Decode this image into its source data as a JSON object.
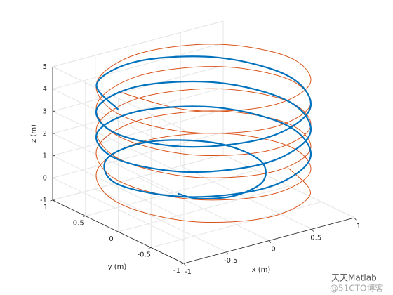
{
  "chart_data": {
    "type": "line3d",
    "xlabel": "x (m)",
    "ylabel": "y (m)",
    "zlabel": "z (m)",
    "xlim": [
      -1,
      1
    ],
    "ylim": [
      -1,
      1
    ],
    "zlim": [
      -1,
      5
    ],
    "xticks": [
      -1,
      -0.5,
      0,
      0.5,
      1
    ],
    "yticks": [
      -1,
      -0.5,
      0,
      0.5,
      1
    ],
    "zticks": [
      -1,
      0,
      1,
      2,
      3,
      4,
      5
    ],
    "grid": true,
    "series": [
      {
        "color": "#d95319",
        "width": 1,
        "x": [
          -1,
          -0.707,
          0,
          0.707,
          1,
          0.707,
          0,
          -0.707,
          -1,
          -0.707,
          0,
          0.707,
          1,
          0.707,
          0,
          -0.707,
          -1,
          -0.707,
          0,
          0.707,
          1,
          0.707,
          0,
          -0.707,
          -1,
          -0.707,
          0,
          0.707,
          1,
          0.707,
          0,
          -0.707,
          -1,
          -0.707,
          0,
          0.707,
          1,
          0.707,
          0,
          -0.707,
          -1,
          -0.707,
          0,
          0.707,
          1
        ],
        "y": [
          0,
          -0.707,
          -1,
          -0.707,
          0,
          0.707,
          1,
          0.707,
          0,
          -0.707,
          -1,
          -0.707,
          0,
          0.707,
          1,
          0.707,
          0,
          -0.707,
          -1,
          -0.707,
          0,
          0.707,
          1,
          0.707,
          0,
          -0.707,
          -1,
          -0.707,
          0,
          0.707,
          1,
          0.707,
          0,
          -0.707,
          -1,
          -0.707,
          0,
          0.707,
          1,
          0.707,
          0,
          -0.707,
          -1,
          -0.707,
          0
        ],
        "z": [
          5.3,
          5.175,
          5.05,
          4.925,
          4.8,
          4.675,
          4.55,
          4.425,
          4.3,
          4.175,
          4.05,
          3.925,
          3.8,
          3.675,
          3.55,
          3.425,
          3.3,
          3.175,
          3.05,
          2.925,
          2.8,
          2.675,
          2.55,
          2.425,
          2.3,
          2.175,
          2.05,
          1.925,
          1.8,
          1.675,
          1.55,
          1.425,
          1.3,
          1.175,
          1.05,
          0.925,
          0.8,
          0.675,
          0.55,
          0.425,
          0.3,
          0.175,
          0.05,
          -0.075,
          -0.2
        ]
      },
      {
        "color": "#0072bd",
        "width": 2.2,
        "x": [
          -0.3,
          -0.276,
          0,
          0.396,
          0.65,
          0.523,
          0,
          -0.643,
          -1,
          -0.707,
          0,
          0.707,
          1,
          0.707,
          0,
          -0.707,
          -1,
          -0.707,
          0,
          0.707,
          1,
          0.707,
          0,
          -0.707,
          -1,
          -0.707,
          0,
          0.707,
          1,
          0.707,
          0,
          -0.707,
          -1
        ],
        "y": [
          0,
          -0.276,
          -0.48,
          -0.396,
          0,
          0.523,
          0.83,
          0.643,
          0,
          -0.707,
          -1,
          -0.707,
          0,
          0.707,
          1,
          0.707,
          0,
          -0.707,
          -1,
          -0.707,
          0,
          0.707,
          1,
          0.707,
          0,
          -0.707,
          -1,
          -0.707,
          0,
          0.707,
          1,
          0.707,
          0
        ],
        "z": [
          0,
          0.14,
          0.28,
          0.42,
          0.56,
          0.7,
          0.84,
          0.98,
          1.13,
          1.27,
          1.41,
          1.55,
          1.69,
          1.83,
          1.97,
          2.11,
          2.25,
          2.39,
          2.53,
          2.67,
          2.81,
          2.95,
          3.09,
          3.23,
          3.38,
          3.52,
          3.66,
          3.8,
          3.94,
          4.08,
          4.22,
          4.36,
          4.5
        ]
      }
    ],
    "watermark": [
      "天天Matlab",
      "@51CTO博客"
    ]
  }
}
